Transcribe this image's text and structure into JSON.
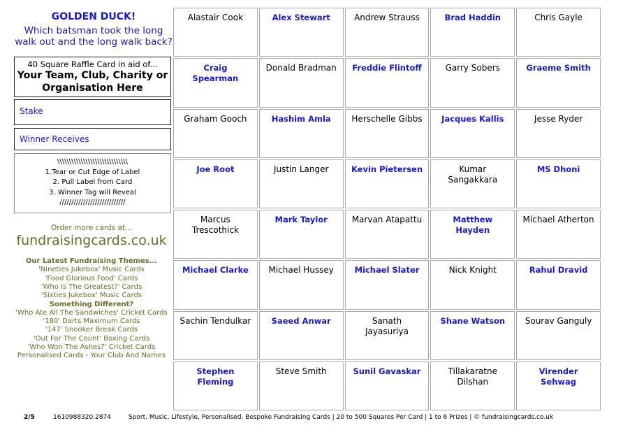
{
  "header": {
    "title": "GOLDEN DUCK!",
    "question": "Which batsman took the long walk out and the long walk back?"
  },
  "raffle_box": {
    "line1": "40 Square Raffle Card in aid of...",
    "line2": "Your Team, Club, Charity or Organisation Here"
  },
  "stake_label": "Stake",
  "winner_label": "Winner Receives",
  "instructions": {
    "top": "\\\\\\\\\\\\\\\\\\\\\\\\\\\\\\\\\\\\\\\\\\\\\\\\\\\\\\\\\\\\",
    "steps": [
      "1.Tear or Cut Edge of Label",
      "2. Pull Label from Card",
      "3. Winner Tag will Reveal"
    ],
    "bottom": "////////////////////////////"
  },
  "order": {
    "text": "Order more cards at...",
    "site": "fundraisingcards.co.uk"
  },
  "themes": {
    "heading": "Our Latest Fundraising Themes...",
    "items": [
      "'Nineties Jukebox' Music Cards",
      "'Food Glorious Food' Cards",
      "'Who Is The Greatest?' Cards",
      "'Sixties Jukebox' Music Cards"
    ],
    "heading2": "Something Different?",
    "items2": [
      "'Who Ate All The Sandwiches' Cricket Cards",
      "'180' Darts Maximum Cards",
      "'147' Snooker Break Cards",
      "'Out For The Count' Boxing Cards",
      "'Who Won The Ashes?' Cricket Cards",
      "Personalised Cards - Your Club And Names"
    ]
  },
  "grid": {
    "cells": [
      "Alastair Cook",
      "Alex Stewart",
      "Andrew Strauss",
      "Brad Haddin",
      "Chris Gayle",
      "Craig Spearman",
      "Donald Bradman",
      "Freddie Flintoff",
      "Garry Sobers",
      "Graeme Smith",
      "Graham Gooch",
      "Hashim Amla",
      "Herschelle Gibbs",
      "Jacques Kallis",
      "Jesse Ryder",
      "Joe Root",
      "Justin Langer",
      "Kevin Pietersen",
      "Kumar Sangakkara",
      "MS Dhoni",
      "Marcus Trescothick",
      "Mark Taylor",
      "Marvan Atapattu",
      "Matthew Hayden",
      "Michael Atherton",
      "Michael Clarke",
      "Michael Hussey",
      "Michael Slater",
      "Nick Knight",
      "Rahul Dravid",
      "Sachin Tendulkar",
      "Saeed Anwar",
      "Sanath Jayasuriya",
      "Shane Watson",
      "Sourav Ganguly",
      "Stephen Fleming",
      "Steve Smith",
      "Sunil Gavaskar",
      "Tillakaratne Dilshan",
      "Virender Sehwag"
    ]
  },
  "footer": {
    "page": "2/5",
    "id": "1610988320.2874",
    "text": "Sport, Music, Lifestyle, Personalised, Bespoke Fundraising Cards | 20 to 500 Squares Per Card | 1 to 6 Prizes | © fundraisingcards.co.uk"
  }
}
